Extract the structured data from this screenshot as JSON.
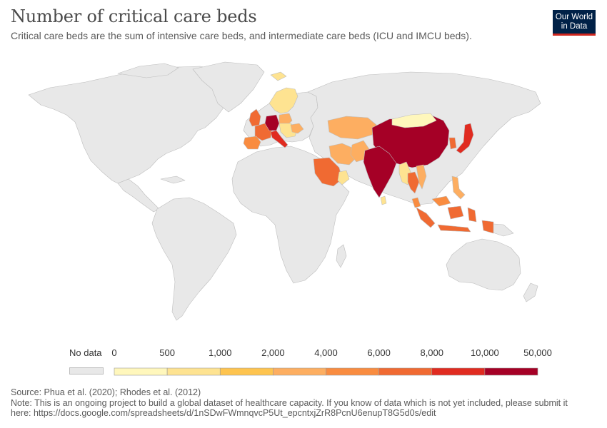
{
  "title": "Number of critical care beds",
  "subtitle": "Critical care beds are the sum of intensive care beds, and intermediate care beds (ICU and IMCU beds).",
  "logo": {
    "line1": "Our World",
    "line2": "in Data"
  },
  "legend": {
    "no_data_label": "No data",
    "no_data_color": "#e8e8e8",
    "ticks": [
      "0",
      "500",
      "1,000",
      "2,000",
      "4,000",
      "6,000",
      "8,000",
      "10,000",
      "50,000"
    ],
    "colors": [
      "#fff7bc",
      "#fee391",
      "#fec44f",
      "#fdae61",
      "#f98c40",
      "#f06a32",
      "#e02b20",
      "#a50026"
    ]
  },
  "map": {
    "projection": "robinson",
    "land_no_data_color": "#e8e8e8",
    "border_color": "#bdbdbd",
    "regions": [
      {
        "id": "germany",
        "color": "#a50026"
      },
      {
        "id": "italy",
        "color": "#e02b20"
      },
      {
        "id": "france",
        "color": "#f06a32"
      },
      {
        "id": "spain",
        "color": "#f98c40"
      },
      {
        "id": "united-kingdom",
        "color": "#f06a32"
      },
      {
        "id": "poland",
        "color": "#fdae61"
      },
      {
        "id": "romania",
        "color": "#fdae61"
      },
      {
        "id": "scandinavia",
        "color": "#fee391"
      },
      {
        "id": "iceland",
        "color": "#fee391"
      },
      {
        "id": "eastern-europe",
        "color": "#fee391"
      },
      {
        "id": "kazakhstan",
        "color": "#fdae61"
      },
      {
        "id": "iran",
        "color": "#fdae61"
      },
      {
        "id": "saudi-arabia",
        "color": "#f06a32"
      },
      {
        "id": "oman",
        "color": "#fee391"
      },
      {
        "id": "pakistan",
        "color": "#fdae61"
      },
      {
        "id": "india",
        "color": "#a50026"
      },
      {
        "id": "china",
        "color": "#a50026"
      },
      {
        "id": "mongolia",
        "color": "#fff7bc"
      },
      {
        "id": "japan",
        "color": "#e02b20"
      },
      {
        "id": "south-korea",
        "color": "#f06a32"
      },
      {
        "id": "myanmar",
        "color": "#fee391"
      },
      {
        "id": "thailand",
        "color": "#f06a32"
      },
      {
        "id": "vietnam",
        "color": "#fdae61"
      },
      {
        "id": "philippines",
        "color": "#fdae61"
      },
      {
        "id": "malaysia",
        "color": "#f98c40"
      },
      {
        "id": "indonesia",
        "color": "#f06a32"
      },
      {
        "id": "sri-lanka",
        "color": "#fee391"
      }
    ]
  },
  "footer": {
    "source": "Source: Phua et al. (2020); Rhodes et al. (2012)",
    "note": "Note: This is an ongoing project to build a global dataset of healthcare capacity. If you know of data which is not yet included, please submit it",
    "link": "here: https://docs.google.com/spreadsheets/d/1nSDwFWmnqvcP5Ut_epcntxjZrR8PcnU6enupT8G5d0s/edit"
  }
}
